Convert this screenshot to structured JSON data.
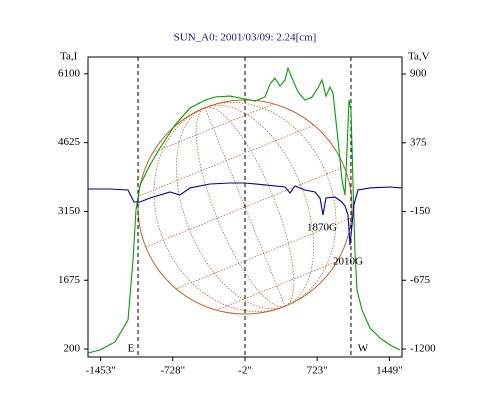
{
  "chart_data": {
    "type": "line",
    "title": "SUN_A0: 2001/03/09: 2.24[cm]",
    "y_label": "Ta,I",
    "y2_label": "Ta,V",
    "xlim": [
      -1580,
      1576
    ],
    "ylim": [
      30,
      6460
    ],
    "y2lim": [
      -1261,
      1030
    ],
    "xticks": [
      {
        "value": -1453,
        "label": "-1453\""
      },
      {
        "value": -728,
        "label": "-728\""
      },
      {
        "value": -2,
        "label": "-2\""
      },
      {
        "value": 723,
        "label": "723\""
      },
      {
        "value": 1449,
        "label": "1449\""
      }
    ],
    "yticks": [
      200,
      1675,
      3150,
      4625,
      6100
    ],
    "y2ticks": [
      -1200,
      -675,
      -150,
      375,
      900
    ],
    "vlines": [
      -1077,
      -2,
      1063
    ],
    "annotations": [
      "E",
      "W",
      "1870G",
      "2010G"
    ],
    "series": [
      {
        "color": "#00a000",
        "axis": "y",
        "x": [
          -1580,
          -1459,
          -1309,
          -1178,
          -1128,
          -1098,
          -1057,
          -957,
          -856,
          -706,
          -555,
          -404,
          -304,
          -153,
          -2,
          98,
          199,
          249,
          299,
          350,
          400,
          430,
          470,
          531,
          601,
          671,
          731,
          772,
          812,
          852,
          882,
          933,
          973,
          1003,
          1023,
          1043,
          1063,
          1083,
          1103,
          1124,
          1174,
          1254,
          1355,
          1455,
          1556
        ],
        "values": [
          116,
          180,
          351,
          823,
          2109,
          3180,
          3716,
          4145,
          4509,
          5002,
          5366,
          5537,
          5602,
          5623,
          5559,
          5516,
          5602,
          5880,
          6008,
          5837,
          5966,
          6223,
          6008,
          5709,
          5537,
          5602,
          5794,
          5966,
          5623,
          5816,
          5687,
          4680,
          3823,
          3502,
          4466,
          5537,
          5323,
          3823,
          2323,
          1466,
          1037,
          651,
          437,
          287,
          180
        ]
      },
      {
        "color": "#000090",
        "axis": "y2",
        "x": [
          -1580,
          -1359,
          -1178,
          -1118,
          -1057,
          -957,
          -756,
          -655,
          -555,
          -354,
          -153,
          -2,
          199,
          400,
          450,
          500,
          601,
          702,
          752,
          782,
          812,
          902,
          973,
          1003,
          1033,
          1053,
          1073,
          1093,
          1134,
          1254,
          1455,
          1576
        ],
        "values": [
          22,
          22,
          14,
          -77,
          -77,
          -47,
          -1,
          -24,
          30,
          60,
          68,
          68,
          53,
          37,
          -9,
          45,
          14,
          -1,
          -47,
          -176,
          -47,
          -39,
          -77,
          -108,
          -176,
          -406,
          -253,
          -100,
          14,
          30,
          37,
          30
        ]
      }
    ]
  }
}
